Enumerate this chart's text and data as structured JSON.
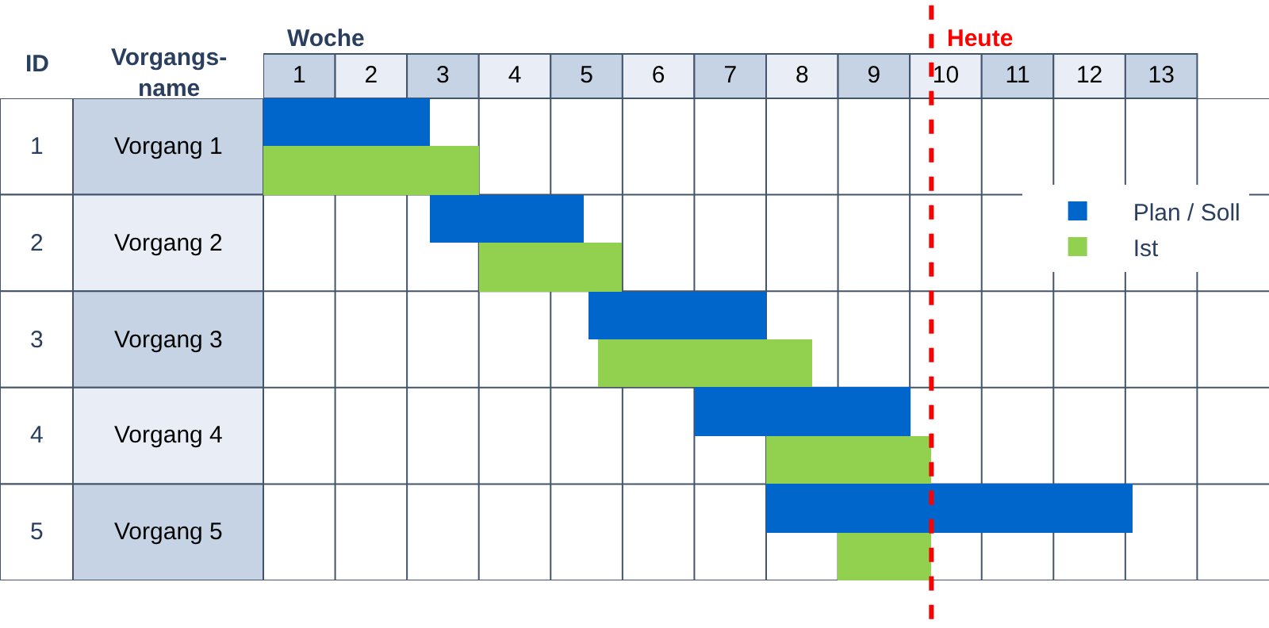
{
  "chart_data": {
    "type": "bar",
    "orientation": "horizontal",
    "xlabel": "Woche",
    "categories": [
      "Vorgang 1",
      "Vorgang 2",
      "Vorgang 3",
      "Vorgang 4",
      "Vorgang 5"
    ],
    "series": [
      {
        "name": "Plan / Soll",
        "color": "#0066cc",
        "base": [
          0,
          2.32,
          4.52,
          6.0,
          7.0
        ],
        "values": [
          2.32,
          2.13,
          2.48,
          3.0,
          5.1
        ]
      },
      {
        "name": "Ist",
        "color": "#92d050",
        "base": [
          0,
          3.0,
          4.65,
          7.0,
          8.0
        ],
        "values": [
          3.0,
          2.0,
          3.0,
          2.3,
          1.3
        ]
      }
    ],
    "xlim": [
      0,
      14
    ],
    "xticks": [
      {
        "value": 0.5,
        "label": "1"
      },
      {
        "value": 1,
        "label": null
      },
      {
        "value": 1.5,
        "label": "2"
      },
      {
        "value": 2,
        "label": null
      },
      {
        "value": 2.5,
        "label": "3"
      },
      {
        "value": 3,
        "label": null
      },
      {
        "value": 3.5,
        "label": "4"
      },
      {
        "value": 4,
        "label": null
      },
      {
        "value": 4.5,
        "label": "5"
      },
      {
        "value": 5,
        "label": null
      },
      {
        "value": 5.5,
        "label": "6"
      },
      {
        "value": 6,
        "label": null
      },
      {
        "value": 6.5,
        "label": "7"
      },
      {
        "value": 7,
        "label": null
      },
      {
        "value": 7.5,
        "label": "8"
      },
      {
        "value": 8,
        "label": null
      },
      {
        "value": 8.5,
        "label": "9"
      },
      {
        "value": 9,
        "label": null
      },
      {
        "value": 9.5,
        "label": "10"
      },
      {
        "value": 10,
        "label": null
      },
      {
        "value": 10.5,
        "label": "11"
      },
      {
        "value": 11,
        "label": null
      },
      {
        "value": 11.5,
        "label": "12"
      },
      {
        "value": 12,
        "label": null
      },
      {
        "value": 12.5,
        "label": "13"
      },
      {
        "value": 13,
        "label": null
      }
    ],
    "ref_lines": [
      {
        "axis": "x",
        "value": 9.3,
        "label": "Heute",
        "color": "#ff0000",
        "line_style": "dashed"
      }
    ],
    "annotations": [
      "ID",
      "Vorgangs-\nname",
      "1",
      "2",
      "3",
      "4",
      "5"
    ],
    "grid": true,
    "legend": "right"
  }
}
